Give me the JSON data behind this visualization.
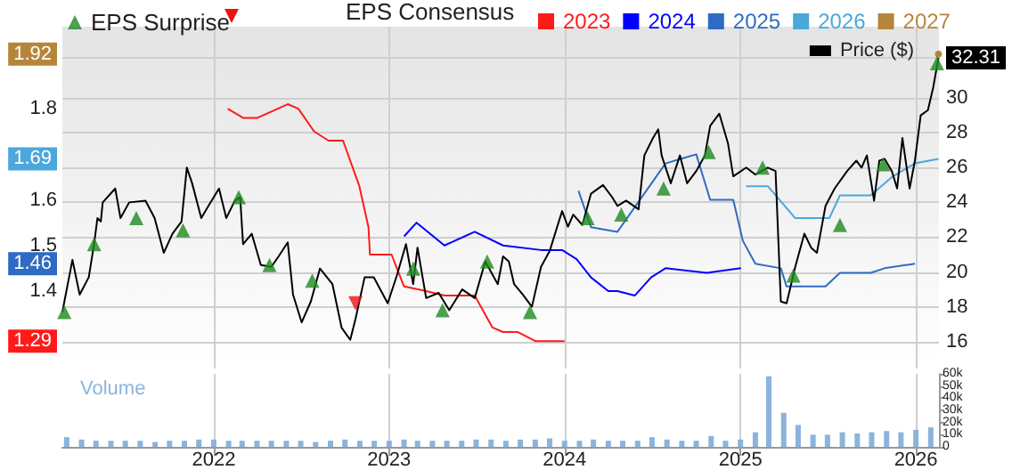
{
  "chart_data": {
    "type": "line",
    "legend": "top",
    "legend_title": "EPS Consensus",
    "grid": true,
    "xlim": [
      "2021-02-20",
      "2026-02-18"
    ],
    "xticks": [
      "2022",
      "2023",
      "2024",
      "2025",
      "2026"
    ],
    "ylim": [
      1.23,
      1.98
    ],
    "yticks": [
      1.29,
      1.4,
      1.46,
      1.5,
      1.6,
      1.69,
      1.8,
      1.92
    ],
    "y2lim": [
      14.45,
      34.1
    ],
    "y2ticks": [
      16,
      18,
      20,
      22,
      24,
      26,
      28,
      30,
      32.31
    ],
    "y3lim": [
      0,
      60000
    ],
    "y3ticks": [
      0,
      {
        "value": 10000,
        "label": "10k"
      },
      {
        "value": 20000,
        "label": "20k"
      },
      {
        "value": 30000,
        "label": "30k"
      },
      {
        "value": 40000,
        "label": "40k"
      },
      {
        "value": 50000,
        "label": "50k"
      },
      {
        "value": 60000,
        "label": "60k"
      }
    ],
    "series": [
      {
        "name": "Price ($)",
        "color": "#000000",
        "axis": "y2",
        "x": [
          "2021-02-20",
          "2021-03-13",
          "2021-03-28",
          "2021-04-16",
          "2021-04-27",
          "2021-05-04",
          "2021-05-11",
          "2021-05-15",
          "2021-06-10",
          "2021-06-21",
          "2021-07-09",
          "2021-08-12",
          "2021-08-31",
          "2021-09-19",
          "2021-10-07",
          "2021-10-26",
          "2021-11-06",
          "2021-11-17",
          "2021-12-06",
          "2021-12-21",
          "2022-01-12",
          "2022-01-27",
          "2022-02-14",
          "2022-02-25",
          "2022-03-03",
          "2022-03-21",
          "2022-04-09",
          "2022-05-01",
          "2022-05-16",
          "2022-06-04",
          "2022-06-15",
          "2022-07-03",
          "2022-07-22",
          "2022-08-10",
          "2022-09-05",
          "2022-09-24",
          "2022-10-12",
          "2022-10-23",
          "2022-11-11",
          "2022-11-30",
          "2022-12-29",
          "2023-01-17",
          "2023-02-05",
          "2023-02-20",
          "2023-03-01",
          "2023-03-19",
          "2023-04-14",
          "2023-05-06",
          "2023-06-02",
          "2023-06-28",
          "2023-07-20",
          "2023-08-15",
          "2023-08-26",
          "2023-09-07",
          "2023-09-18",
          "2023-10-06",
          "2023-10-25",
          "2023-11-13",
          "2023-12-01",
          "2023-12-20",
          "2023-12-27",
          "2024-01-08",
          "2024-01-19",
          "2024-02-07",
          "2024-02-25",
          "2024-03-21",
          "2024-04-09",
          "2024-04-20",
          "2024-05-08",
          "2024-06-03",
          "2024-06-15",
          "2024-07-03",
          "2024-07-14",
          "2024-07-21",
          "2024-08-09",
          "2024-08-28",
          "2024-09-12",
          "2024-10-01",
          "2024-10-19",
          "2024-10-30",
          "2024-11-18",
          "2024-12-06",
          "2024-12-17",
          "2025-01-13",
          "2025-02-01",
          "2025-02-27",
          "2025-03-15",
          "2025-03-26",
          "2025-04-07",
          "2025-04-25",
          "2025-05-14",
          "2025-05-28",
          "2025-06-09",
          "2025-06-27",
          "2025-07-16",
          "2025-08-11",
          "2025-08-30",
          "2025-09-10",
          "2025-09-21",
          "2025-10-06",
          "2025-10-17",
          "2025-10-28",
          "2025-11-12",
          "2025-11-23",
          "2025-12-04",
          "2025-12-19",
          "2025-12-30",
          "2026-01-11",
          "2026-01-26",
          "2026-02-06",
          "2026-02-17"
        ],
        "values": [
          17.7,
          20.7,
          18.7,
          19.7,
          21.6,
          23.1,
          22.9,
          24.0,
          24.8,
          23.1,
          24.0,
          24.1,
          23.1,
          21.1,
          22.2,
          22.9,
          26.0,
          25.1,
          23.1,
          23.8,
          24.8,
          23.1,
          24.1,
          24.3,
          21.6,
          22.2,
          20.4,
          20.3,
          20.9,
          21.7,
          18.7,
          17.1,
          18.3,
          20.2,
          19.3,
          16.8,
          16.1,
          17.3,
          19.7,
          19.7,
          18.2,
          19.8,
          21.6,
          19.3,
          21.4,
          18.5,
          18.8,
          17.8,
          19.0,
          18.5,
          20.6,
          19.3,
          20.9,
          20.6,
          19.3,
          18.7,
          18.0,
          20.3,
          21.2,
          22.9,
          23.5,
          22.6,
          23.3,
          22.7,
          24.5,
          25.0,
          24.3,
          23.8,
          24.1,
          23.6,
          26.7,
          27.7,
          28.2,
          26.7,
          25.1,
          26.7,
          25.1,
          25.8,
          26.7,
          28.4,
          29.1,
          27.4,
          25.5,
          26.0,
          25.6,
          26.0,
          25.8,
          18.3,
          18.2,
          20.3,
          22.2,
          21.4,
          21.1,
          23.8,
          24.8,
          25.8,
          26.4,
          26.0,
          26.7,
          24.1,
          26.4,
          26.5,
          25.8,
          24.8,
          27.7,
          24.8,
          26.4,
          29.0,
          29.3,
          30.6,
          32.31
        ]
      },
      {
        "name": "2023",
        "color": "#ff1a1a",
        "x": [
          "2022-01-30",
          "2022-03-03",
          "2022-04-02",
          "2022-06-04",
          "2022-06-26",
          "2022-07-29",
          "2022-08-28",
          "2022-09-27",
          "2022-10-31",
          "2022-11-19",
          "2022-11-22",
          "2023-01-06",
          "2023-02-01",
          "2023-03-19",
          "2023-04-26",
          "2023-06-28",
          "2023-08-04",
          "2023-08-26",
          "2023-09-26",
          "2023-11-02",
          "2024-01-01"
        ],
        "values": [
          1.8,
          1.78,
          1.78,
          1.81,
          1.8,
          1.75,
          1.73,
          1.73,
          1.63,
          1.54,
          1.48,
          1.48,
          1.41,
          1.4,
          1.39,
          1.39,
          1.32,
          1.31,
          1.31,
          1.29,
          1.29
        ]
      },
      {
        "name": "2024",
        "color": "#0000ff",
        "x": [
          "2023-02-01",
          "2023-02-27",
          "2023-04-26",
          "2023-06-28",
          "2023-08-26",
          "2023-11-13",
          "2023-12-27",
          "2024-01-26",
          "2024-02-25",
          "2024-04-01",
          "2024-04-20",
          "2024-05-26",
          "2024-06-29",
          "2024-07-29",
          "2024-10-23",
          "2025-01-02"
        ],
        "values": [
          1.52,
          1.55,
          1.5,
          1.53,
          1.5,
          1.49,
          1.49,
          1.47,
          1.43,
          1.4,
          1.4,
          1.39,
          1.43,
          1.45,
          1.44,
          1.45
        ]
      },
      {
        "name": "2025",
        "color": "#2f6bc4",
        "x": [
          "2024-01-30",
          "2024-02-25",
          "2024-04-20",
          "2024-07-29",
          "2024-10-01",
          "2024-10-30",
          "2024-12-17",
          "2025-01-06",
          "2025-02-01",
          "2025-03-26",
          "2025-04-07",
          "2025-06-27",
          "2025-07-27",
          "2025-09-29",
          "2025-10-28",
          "2025-12-30"
        ],
        "values": [
          1.62,
          1.54,
          1.53,
          1.68,
          1.7,
          1.6,
          1.6,
          1.51,
          1.46,
          1.45,
          1.41,
          1.41,
          1.44,
          1.44,
          1.45,
          1.46
        ]
      },
      {
        "name": "2026",
        "color": "#4ba7dc",
        "x": [
          "2025-01-13",
          "2025-02-27",
          "2025-04-25",
          "2025-07-05",
          "2025-07-27",
          "2025-09-29",
          "2025-11-12",
          "2025-12-30",
          "2026-02-17"
        ],
        "values": [
          1.63,
          1.63,
          1.56,
          1.56,
          1.61,
          1.61,
          1.65,
          1.68,
          1.69
        ]
      },
      {
        "name": "2027",
        "color": "#b5863a",
        "marker": "circle",
        "x": [
          "2026-02-17"
        ],
        "values": [
          1.92
        ]
      },
      {
        "name": "EPS Surprise",
        "type": "scatter",
        "marker": "triangle",
        "color": "#1f8a1f",
        "axis": "y2",
        "x": [
          "2021-02-24",
          "2021-04-27",
          "2021-07-24",
          "2021-10-29",
          "2022-02-22",
          "2022-04-27",
          "2022-07-25",
          "2023-02-20",
          "2023-04-22",
          "2023-07-24",
          "2023-10-21",
          "2024-02-18",
          "2024-04-28",
          "2024-07-25",
          "2024-10-27",
          "2025-02-16",
          "2025-04-21",
          "2025-07-27",
          "2025-10-25",
          "2026-02-14"
        ],
        "values": [
          17.7,
          21.6,
          23.1,
          22.4,
          24.3,
          20.4,
          19.5,
          20.2,
          17.8,
          20.6,
          17.7,
          23.1,
          23.3,
          24.8,
          26.9,
          26.0,
          19.8,
          22.7,
          26.2,
          32.0
        ]
      },
      {
        "type": "scatter",
        "marker": "triangle",
        "color": "#ee1111",
        "axis": "y2",
        "x": [
          "2022-10-23"
        ],
        "values": [
          18.2
        ]
      },
      {
        "name": "Volume",
        "type": "bar",
        "color": "#8ab4dc",
        "axis": "y3",
        "x": [
          "2021-03",
          "2021-04",
          "2021-05",
          "2021-06",
          "2021-07",
          "2021-08",
          "2021-09",
          "2021-10",
          "2021-11",
          "2021-12",
          "2022-01",
          "2022-02",
          "2022-03",
          "2022-04",
          "2022-05",
          "2022-06",
          "2022-07",
          "2022-08",
          "2022-09",
          "2022-10",
          "2022-11",
          "2022-12",
          "2023-01",
          "2023-02",
          "2023-03",
          "2023-04",
          "2023-05",
          "2023-06",
          "2023-07",
          "2023-08",
          "2023-09",
          "2023-10",
          "2023-11",
          "2023-12",
          "2024-01",
          "2024-02",
          "2024-03",
          "2024-04",
          "2024-05",
          "2024-06",
          "2024-07",
          "2024-08",
          "2024-09",
          "2024-10",
          "2024-11",
          "2024-12",
          "2025-01",
          "2025-02",
          "2025-03",
          "2025-04",
          "2025-05",
          "2025-06",
          "2025-07",
          "2025-08",
          "2025-09",
          "2025-10",
          "2025-11",
          "2025-12",
          "2026-01",
          "2026-02"
        ],
        "values": [
          8000,
          6000,
          5000,
          5000,
          5000,
          5000,
          4000,
          5000,
          5000,
          6000,
          6000,
          5000,
          5000,
          5000,
          5000,
          5000,
          5000,
          4000,
          5000,
          6000,
          5000,
          5000,
          5000,
          6000,
          5000,
          5000,
          5000,
          5000,
          6000,
          6000,
          5000,
          6000,
          6000,
          7000,
          5000,
          5000,
          6000,
          5000,
          5000,
          5000,
          8000,
          6000,
          5000,
          5000,
          9000,
          5000,
          6000,
          12000,
          58000,
          28000,
          18000,
          10000,
          10000,
          12000,
          11000,
          12000,
          13000,
          12000,
          14000,
          16000
        ]
      }
    ]
  }
}
